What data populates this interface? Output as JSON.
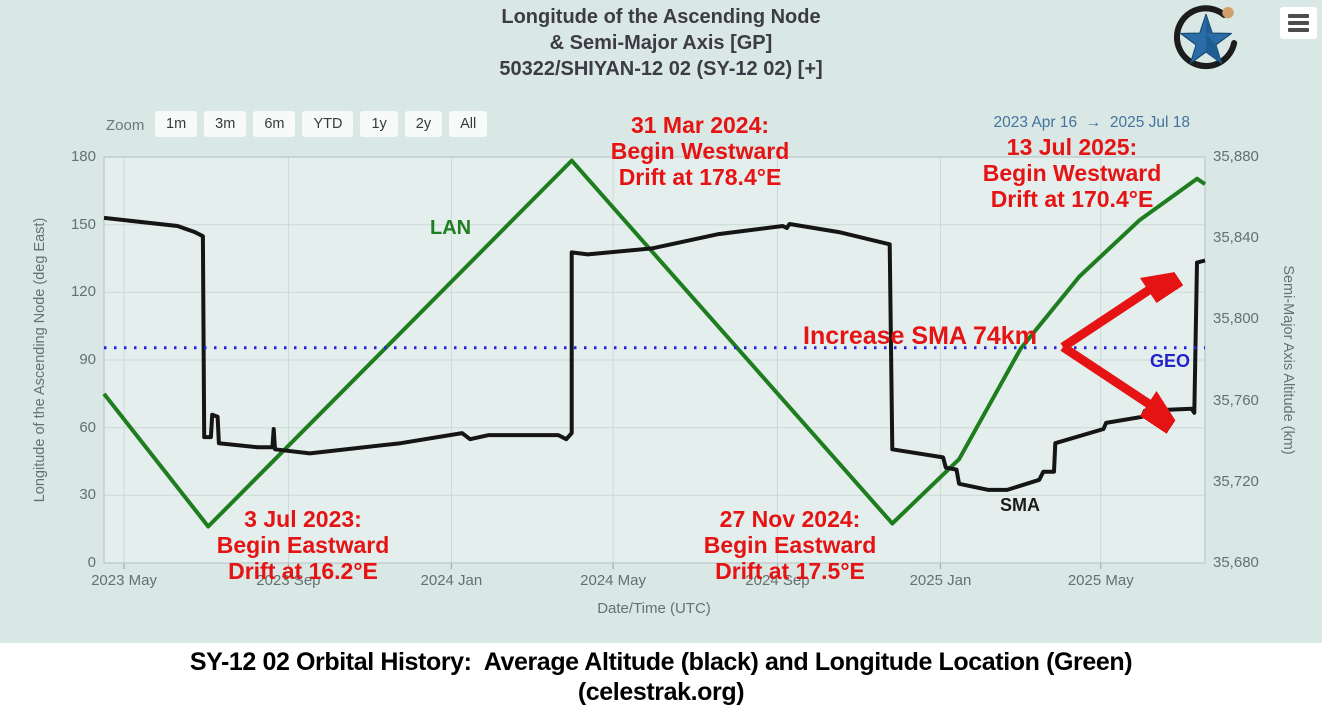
{
  "header": {
    "title_line1": "Longitude of the Ascending Node",
    "title_line2": "& Semi-Major Axis [GP]",
    "title_line3": "50322/SHIYAN-12 02 (SY-12 02) [+]"
  },
  "toolbar": {
    "zoom_label": "Zoom",
    "buttons": [
      "1m",
      "3m",
      "6m",
      "YTD",
      "1y",
      "2y",
      "All"
    ],
    "date_range": "2023 Apr 16  →  2025 Jul 18"
  },
  "chart_data": {
    "type": "line",
    "x_axis": {
      "label": "Date/Time (UTC)",
      "start": "2023-04-16",
      "end": "2025-07-18",
      "total_days": 824,
      "ticks": [
        {
          "day": 15,
          "label": "2023 May"
        },
        {
          "day": 138,
          "label": "2023 Sep"
        },
        {
          "day": 260,
          "label": "2024 Jan"
        },
        {
          "day": 381,
          "label": "2024 May"
        },
        {
          "day": 504,
          "label": "2024 Sep"
        },
        {
          "day": 626,
          "label": "2025 Jan"
        },
        {
          "day": 746,
          "label": "2025 May"
        }
      ]
    },
    "y_left": {
      "label": "Longitude of the Ascending Node (deg East)",
      "min": 0,
      "max": 180,
      "ticks": [
        {
          "v": 0,
          "label": "0"
        },
        {
          "v": 30,
          "label": "30"
        },
        {
          "v": 60,
          "label": "60"
        },
        {
          "v": 90,
          "label": "90"
        },
        {
          "v": 120,
          "label": "120"
        },
        {
          "v": 150,
          "label": "150"
        },
        {
          "v": 180,
          "label": "180"
        }
      ]
    },
    "y_right": {
      "label": "Semi-Major Axis Altitude (km)",
      "min": 35680,
      "max": 35880,
      "ticks": [
        {
          "v": 35680,
          "label": "35,680"
        },
        {
          "v": 35720,
          "label": "35,720"
        },
        {
          "v": 35760,
          "label": "35,760"
        },
        {
          "v": 35800,
          "label": "35,800"
        },
        {
          "v": 35840,
          "label": "35,840"
        },
        {
          "v": 35880,
          "label": "35,880"
        }
      ]
    },
    "geo_altitude_km": 35786,
    "series": [
      {
        "name": "LAN",
        "axis": "left",
        "color": "#1e7d1e",
        "width": 4,
        "style": "solid",
        "points": [
          [
            0,
            75
          ],
          [
            78,
            16.2
          ],
          [
            350,
            178.4
          ],
          [
            590,
            17.5
          ],
          [
            640,
            46
          ],
          [
            686,
            95
          ],
          [
            730,
            127
          ],
          [
            775,
            152
          ],
          [
            818,
            170.4
          ],
          [
            824,
            168
          ]
        ]
      },
      {
        "name": "SMA",
        "axis": "right",
        "color": "#151515",
        "width": 4,
        "style": "solid",
        "points": [
          [
            0,
            35850
          ],
          [
            55,
            35846
          ],
          [
            68,
            35843
          ],
          [
            74,
            35841
          ],
          [
            75,
            35742
          ],
          [
            80,
            35742
          ],
          [
            81,
            35753
          ],
          [
            85,
            35752
          ],
          [
            86,
            35739
          ],
          [
            115,
            35737
          ],
          [
            126,
            35737
          ],
          [
            127,
            35746
          ],
          [
            128,
            35736
          ],
          [
            154,
            35734
          ],
          [
            222,
            35739
          ],
          [
            268,
            35744
          ],
          [
            274,
            35741
          ],
          [
            288,
            35743
          ],
          [
            340,
            35743
          ],
          [
            346,
            35741
          ],
          [
            350,
            35744
          ],
          [
            350,
            35833
          ],
          [
            362,
            35832
          ],
          [
            410,
            35835
          ],
          [
            460,
            35842
          ],
          [
            508,
            35846
          ],
          [
            511,
            35845
          ],
          [
            513,
            35847
          ],
          [
            550,
            35843
          ],
          [
            588,
            35837
          ],
          [
            590,
            35736
          ],
          [
            628,
            35732
          ],
          [
            630,
            35727
          ],
          [
            638,
            35726
          ],
          [
            640,
            35719
          ],
          [
            662,
            35716
          ],
          [
            676,
            35716
          ],
          [
            700,
            35721
          ],
          [
            703,
            35725
          ],
          [
            711,
            35725
          ],
          [
            712,
            35739
          ],
          [
            748,
            35746
          ],
          [
            750,
            35749
          ],
          [
            777,
            35752
          ],
          [
            779,
            35755
          ],
          [
            814,
            35756
          ],
          [
            816,
            35754
          ],
          [
            818,
            35828
          ],
          [
            824,
            35829
          ]
        ]
      },
      {
        "name": "GEO",
        "axis": "right",
        "color": "#2424dd",
        "width": 3,
        "style": "dotted",
        "points": [
          [
            0,
            35786
          ],
          [
            824,
            35786
          ]
        ]
      }
    ],
    "annotations": {
      "a1": {
        "line1": "31 Mar 2024:",
        "line2": "Begin Westward",
        "line3": "Drift at 178.4°E"
      },
      "a2": {
        "line1": "13 Jul 2025:",
        "line2": "Begin Westward",
        "line3": "Drift at 170.4°E"
      },
      "a3": {
        "line1": "3 Jul 2023:",
        "line2": "Begin Eastward",
        "line3": "Drift at 16.2°E"
      },
      "a4": {
        "line1": "27 Nov 2024:",
        "line2": "Begin Eastward",
        "line3": "Drift at 17.5°E"
      },
      "sma_increase": "Increase SMA 74km",
      "lan_label": "LAN",
      "sma_label": "SMA",
      "geo_label": "GEO"
    }
  },
  "caption": {
    "line1": "SY-12 02 Orbital History:  Average Altitude (black) and Longitude Location (Green)",
    "line2": "(celestrak.org)"
  },
  "colors": {
    "background": "#d9e7e5",
    "plot_background": "#e4efed",
    "gridline": "#cbd8d6",
    "plot_border": "#b5c2c1",
    "tick_mark": "#99a3a2",
    "annotation_red": "#e51313",
    "lan_green": "#1e7d1e",
    "sma_black": "#151515",
    "geo_blue": "#2424dd",
    "range_text_blue": "#44739e"
  }
}
